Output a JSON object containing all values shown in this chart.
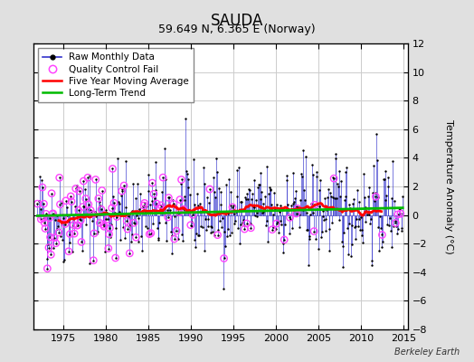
{
  "title": "SAUDA",
  "subtitle": "59.649 N, 6.365 E (Norway)",
  "ylabel": "Temperature Anomaly (°C)",
  "watermark": "Berkeley Earth",
  "xlim": [
    1971.5,
    2015.5
  ],
  "ylim": [
    -8,
    12
  ],
  "yticks": [
    -8,
    -6,
    -4,
    -2,
    0,
    2,
    4,
    6,
    8,
    10,
    12
  ],
  "xticks": [
    1975,
    1980,
    1985,
    1990,
    1995,
    2000,
    2005,
    2010,
    2015
  ],
  "bg_color": "#e0e0e0",
  "plot_bg_color": "#ffffff",
  "grid_color": "#cccccc",
  "raw_line_color": "#3333cc",
  "raw_marker_color": "#000000",
  "qc_fail_color": "#ff44ff",
  "moving_avg_color": "#ff0000",
  "trend_color": "#00bb00",
  "title_fontsize": 12,
  "subtitle_fontsize": 9,
  "tick_fontsize": 8,
  "legend_fontsize": 7.5,
  "trend_slope": 0.013,
  "trend_intercept": 0.18,
  "seed": 42
}
